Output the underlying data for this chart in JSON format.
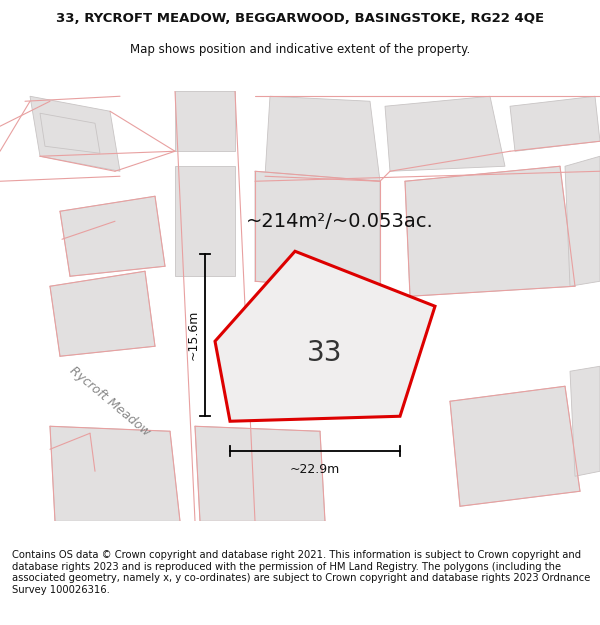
{
  "title_line1": "33, RYCROFT MEADOW, BEGGARWOOD, BASINGSTOKE, RG22 4QE",
  "title_line2": "Map shows position and indicative extent of the property.",
  "footer": "Contains OS data © Crown copyright and database right 2021. This information is subject to Crown copyright and database rights 2023 and is reproduced with the permission of HM Land Registry. The polygons (including the associated geometry, namely x, y co-ordinates) are subject to Crown copyright and database rights 2023 Ordnance Survey 100026316.",
  "area_label": "~214m²/~0.053ac.",
  "number_label": "33",
  "width_label": "~22.9m",
  "height_label": "~15.6m",
  "road_label": "Rycroft Meadow",
  "map_bg": "#f5f0f0",
  "building_color": "#e2e0e0",
  "building_edge_color": "#c8c4c4",
  "plot_edge_color": "#dd0000",
  "pink_line_color": "#e8a0a0",
  "text_color": "#111111",
  "dim_line_color": "#000000",
  "road_label_color": "#888888",
  "title_fontsize": 9.5,
  "subtitle_fontsize": 8.5,
  "footer_fontsize": 7.2,
  "area_fontsize": 14,
  "number_fontsize": 20,
  "dim_fontsize": 9,
  "road_fontsize": 9
}
